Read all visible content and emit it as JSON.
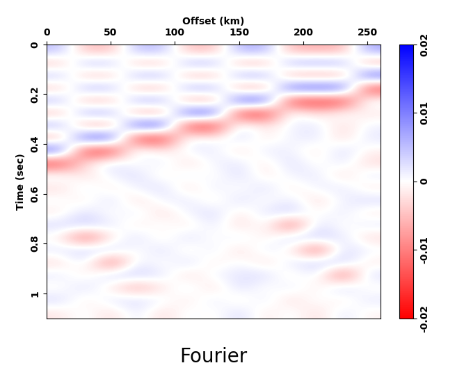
{
  "chart_data": {
    "type": "heatmap",
    "x_label": "Offset (km)",
    "y_label": "Time (sec)",
    "caption": "Fourier",
    "xlim": [
      0,
      260
    ],
    "xticks": [
      0,
      50,
      100,
      150,
      200,
      250
    ],
    "ylim": [
      1.1,
      0
    ],
    "yticks": [
      0,
      0.2,
      0.4,
      0.6,
      0.8,
      1
    ],
    "x_edges": [
      0,
      20,
      40,
      60,
      80,
      100,
      120,
      140,
      160,
      180,
      200,
      220,
      240,
      260
    ],
    "y_edges": [
      0,
      0.05,
      0.1,
      0.15,
      0.2,
      0.25,
      0.3,
      0.35,
      0.4,
      0.45,
      0.5,
      0.55,
      0.6,
      0.65,
      0.7,
      0.75,
      0.8,
      0.85,
      0.9,
      0.95,
      1.0,
      1.05,
      1.1
    ],
    "clim": [
      -0.02,
      0.02
    ],
    "cticks": [
      -0.02,
      -0.01,
      0,
      0.01,
      0.02
    ],
    "cells": [
      [
        0.005,
        -0.005,
        -0.005,
        0.005,
        0.005,
        -0.005,
        -0.005,
        0.006,
        0.006,
        -0.006,
        -0.006,
        -0.006,
        0.007
      ],
      [
        -0.005,
        0.005,
        0.005,
        -0.005,
        -0.005,
        0.006,
        0.006,
        -0.006,
        -0.006,
        0.007,
        0.007,
        0.007,
        -0.008
      ],
      [
        0.005,
        -0.005,
        -0.005,
        0.006,
        0.006,
        -0.006,
        -0.006,
        0.007,
        0.007,
        -0.008,
        -0.008,
        -0.008,
        0.014
      ],
      [
        -0.005,
        0.006,
        0.006,
        -0.006,
        -0.006,
        0.007,
        0.007,
        -0.008,
        -0.008,
        0.014,
        0.014,
        0.014,
        -0.016
      ],
      [
        0.006,
        -0.006,
        -0.006,
        0.007,
        0.007,
        -0.008,
        -0.008,
        0.014,
        0.014,
        -0.016,
        -0.016,
        -0.016,
        0.002
      ],
      [
        -0.006,
        0.007,
        0.007,
        -0.008,
        -0.008,
        0.014,
        0.014,
        -0.016,
        -0.016,
        0.002,
        -0.003,
        0.001,
        -0.002
      ],
      [
        0.007,
        -0.008,
        -0.008,
        0.014,
        0.014,
        -0.016,
        -0.016,
        0.003,
        -0.002,
        0.001,
        0.002,
        -0.003,
        0.001
      ],
      [
        -0.008,
        0.014,
        0.014,
        -0.016,
        -0.016,
        0.002,
        -0.001,
        0.003,
        -0.002,
        0.001,
        0.002,
        -0.003,
        0.002
      ],
      [
        0.014,
        -0.016,
        -0.016,
        0.003,
        -0.002,
        0.001,
        0.002,
        -0.003,
        0.002,
        0.001,
        -0.002,
        0.003,
        -0.001
      ],
      [
        -0.016,
        -0.002,
        0.003,
        -0.001,
        0.002,
        -0.003,
        0.001,
        0.002,
        -0.002,
        0.003,
        -0.001,
        0.002,
        -0.003
      ],
      [
        0.002,
        -0.003,
        0.001,
        0.003,
        -0.002,
        0.002,
        -0.001,
        0.003,
        -0.002,
        0.001,
        0.002,
        -0.003,
        0.002
      ],
      [
        -0.003,
        0.002,
        -0.002,
        0.001,
        0.003,
        -0.003,
        0.002,
        -0.001,
        0.003,
        -0.002,
        0.001,
        0.002,
        -0.002
      ],
      [
        0.001,
        -0.002,
        0.003,
        -0.003,
        0.001,
        0.002,
        -0.002,
        0.003,
        -0.001,
        0.002,
        -0.003,
        0.001,
        0.003
      ],
      [
        -0.002,
        0.003,
        -0.001,
        0.002,
        -0.003,
        0.001,
        0.003,
        -0.002,
        0.002,
        0.004,
        -0.001,
        0.002,
        -0.002
      ],
      [
        0.003,
        0.004,
        0.002,
        -0.002,
        0.001,
        -0.002,
        0.002,
        -0.003,
        0.001,
        -0.012,
        0.003,
        -0.001,
        0.002
      ],
      [
        -0.001,
        -0.012,
        -0.002,
        0.003,
        -0.002,
        0.003,
        -0.001,
        0.002,
        -0.002,
        0.004,
        0.004,
        0.002,
        -0.003
      ],
      [
        0.002,
        0.004,
        0.004,
        -0.001,
        0.003,
        -0.002,
        0.002,
        -0.003,
        0.002,
        -0.001,
        -0.012,
        0.003,
        0.001
      ],
      [
        -0.003,
        0.002,
        -0.012,
        0.002,
        -0.001,
        0.003,
        -0.002,
        0.001,
        -0.003,
        0.002,
        0.004,
        0.004,
        -0.002
      ],
      [
        0.002,
        -0.002,
        0.004,
        0.004,
        0.002,
        -0.003,
        0.001,
        0.002,
        0.003,
        -0.002,
        0.002,
        -0.012,
        0.003
      ],
      [
        -0.001,
        0.003,
        -0.002,
        -0.007,
        -0.002,
        0.002,
        -0.003,
        0.003,
        -0.001,
        0.002,
        -0.002,
        0.004,
        -0.001
      ],
      [
        0.003,
        -0.002,
        0.002,
        0.003,
        0.001,
        -0.002,
        0.002,
        -0.002,
        0.002,
        -0.003,
        0.001,
        -0.002,
        0.002
      ],
      [
        -0.002,
        0.001,
        -0.003,
        0.002,
        -0.003,
        0.001,
        -0.001,
        0.003,
        -0.002,
        0.001,
        -0.003,
        0.002,
        -0.001
      ]
    ]
  }
}
